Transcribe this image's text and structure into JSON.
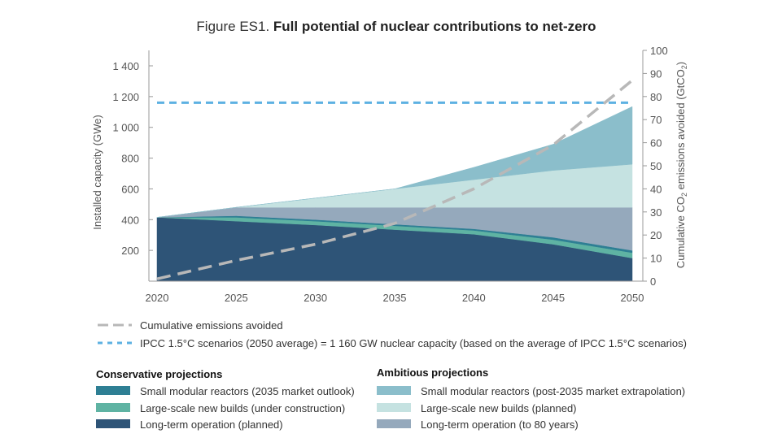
{
  "chart_data": {
    "type": "area",
    "title_prefix": "Figure ES1.",
    "title": "Full potential of nuclear contributions to net-zero",
    "x": [
      2020,
      2025,
      2030,
      2035,
      2040,
      2045,
      2050
    ],
    "x_ticks": [
      "2020",
      "2025",
      "2030",
      "2035",
      "2040",
      "2045",
      "2050"
    ],
    "ylabel": "Installed capacity (GWe)",
    "ylim": [
      0,
      1400
    ],
    "y_ticks": [
      "200",
      "400",
      "600",
      "800",
      "1 000",
      "1 200",
      "1 400"
    ],
    "y_tick_values": [
      200,
      400,
      600,
      800,
      1000,
      1200,
      1400
    ],
    "y2label_parts": [
      "Cumulative CO",
      "2",
      " emissions avoided (GtCO",
      "2",
      ")"
    ],
    "y2lim": [
      0,
      100
    ],
    "y2_ticks": [
      "0",
      "10",
      "20",
      "30",
      "40",
      "50",
      "60",
      "70",
      "80",
      "90",
      "100"
    ],
    "stacked_series": [
      {
        "name": "Long-term operation (planned)",
        "group": "conservative",
        "color": "#2e5477",
        "values": [
          415,
          390,
          365,
          335,
          305,
          240,
          150
        ]
      },
      {
        "name": "Large-scale new builds (under construction)",
        "group": "conservative",
        "color": "#5fb3a3",
        "values": [
          0,
          25,
          25,
          25,
          25,
          30,
          35
        ]
      },
      {
        "name": "Small modular reactors (2035 market outlook)",
        "group": "conservative",
        "color": "#2e7f94",
        "values": [
          0,
          10,
          10,
          10,
          10,
          15,
          15
        ]
      },
      {
        "name": "Long-term operation (to 80 years)",
        "group": "ambitious",
        "color": "#95a9bc",
        "values": [
          0,
          55,
          80,
          110,
          140,
          195,
          280
        ]
      },
      {
        "name": "Large-scale new builds (planned)",
        "group": "ambitious",
        "color": "#c5e2e1",
        "values": [
          0,
          0,
          60,
          120,
          180,
          240,
          280
        ]
      },
      {
        "name": "Small modular reactors (post-2035 market extrapolation)",
        "group": "ambitious",
        "color": "#8bbecb",
        "values": [
          0,
          0,
          0,
          0,
          80,
          170,
          375
        ]
      }
    ],
    "line_series": [
      {
        "name": "Cumulative emissions avoided",
        "axis": "right",
        "color": "#b8b8b8",
        "values": [
          1,
          9,
          16,
          25,
          40,
          59,
          87
        ]
      }
    ],
    "reference_lines": [
      {
        "name": "IPCC 1.5°C scenarios (2050 average) = 1 160 GW nuclear capacity (based on the average of IPCC 1.5°C scenarios)",
        "value": 1160,
        "color": "#5db1e2"
      }
    ],
    "legend": {
      "conservative_heading": "Conservative projections",
      "ambitious_heading": "Ambitious projections",
      "conservative_order": [
        2,
        1,
        0
      ],
      "ambitious_order": [
        5,
        4,
        3
      ]
    }
  }
}
